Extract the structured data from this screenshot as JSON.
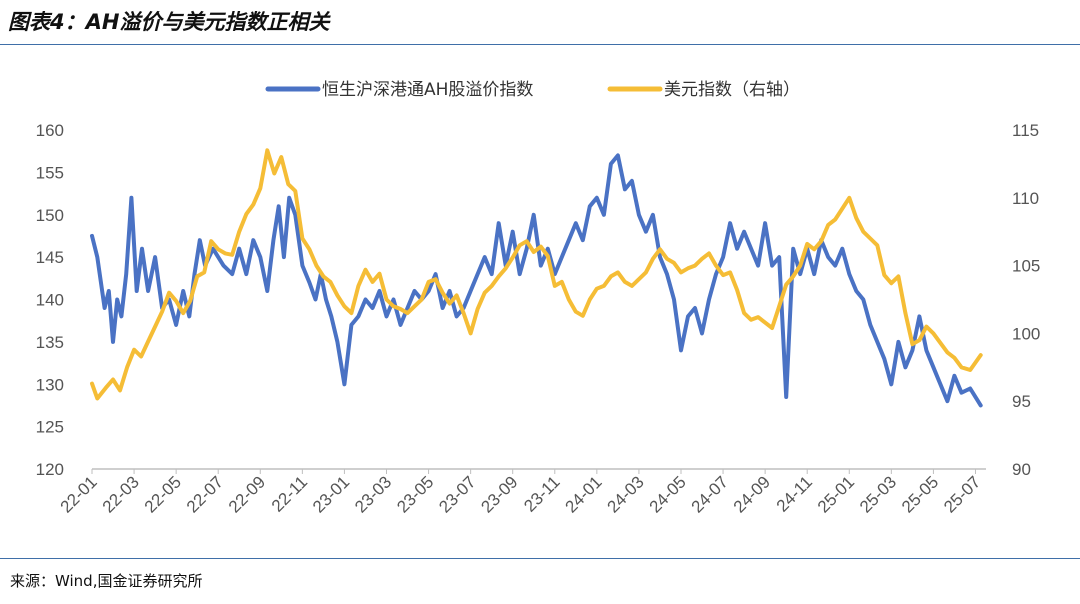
{
  "header": {
    "title": "图表4：AH溢价与美元指数正相关"
  },
  "footer": {
    "source": "来源：Wind,国金证券研究所"
  },
  "colors": {
    "series_ah": "#4a72c4",
    "series_dxy": "#f5bd36",
    "rule": "#3f6fa8",
    "axis": "#bfbfbf"
  },
  "chart_data": {
    "type": "line",
    "title": "",
    "legend_position": "top",
    "grid": false,
    "x_ticks": [
      "22-01",
      "22-03",
      "22-05",
      "22-07",
      "22-09",
      "22-11",
      "23-01",
      "23-03",
      "23-05",
      "23-07",
      "23-09",
      "23-11",
      "24-01",
      "24-03",
      "24-05",
      "24-07",
      "24-09",
      "24-11",
      "25-01",
      "25-03",
      "25-05",
      "25-07"
    ],
    "y_left": {
      "ticks": [
        120,
        125,
        130,
        135,
        140,
        145,
        150,
        155,
        160
      ],
      "range": [
        120,
        160
      ]
    },
    "y_right": {
      "ticks": [
        90,
        95,
        100,
        105,
        110,
        115
      ],
      "range": [
        90,
        115
      ]
    },
    "series": [
      {
        "name": "恒生沪深港通AH股溢价指数",
        "axis": "left",
        "points": [
          [
            "22-01",
            147.5
          ],
          [
            "22-01",
            145
          ],
          [
            "22-02",
            139
          ],
          [
            "22-02",
            141
          ],
          [
            "22-02",
            135
          ],
          [
            "22-02",
            140
          ],
          [
            "22-02",
            138
          ],
          [
            "22-03",
            143
          ],
          [
            "22-03",
            152
          ],
          [
            "22-03",
            141
          ],
          [
            "22-03",
            146
          ],
          [
            "22-04",
            141
          ],
          [
            "22-04",
            145
          ],
          [
            "22-04",
            139
          ],
          [
            "22-05",
            140
          ],
          [
            "22-05",
            137
          ],
          [
            "22-05",
            141
          ],
          [
            "22-06",
            138
          ],
          [
            "22-06",
            143
          ],
          [
            "22-06",
            147
          ],
          [
            "22-06",
            144
          ],
          [
            "22-07",
            146
          ],
          [
            "22-07",
            144
          ],
          [
            "22-08",
            143
          ],
          [
            "22-08",
            146
          ],
          [
            "22-08",
            143
          ],
          [
            "22-09",
            147
          ],
          [
            "22-09",
            145
          ],
          [
            "22-09",
            141
          ],
          [
            "22-10",
            147
          ],
          [
            "22-10",
            151
          ],
          [
            "22-10",
            145
          ],
          [
            "22-10",
            152
          ],
          [
            "22-11",
            150
          ],
          [
            "22-11",
            144
          ],
          [
            "22-11",
            142
          ],
          [
            "22-12",
            140
          ],
          [
            "22-12",
            143
          ],
          [
            "22-12",
            140
          ],
          [
            "22-12",
            138
          ],
          [
            "23-01",
            135
          ],
          [
            "23-01",
            130
          ],
          [
            "23-01",
            137
          ],
          [
            "23-02",
            138
          ],
          [
            "23-02",
            140
          ],
          [
            "23-02",
            139
          ],
          [
            "23-03",
            141
          ],
          [
            "23-03",
            138
          ],
          [
            "23-03",
            140
          ],
          [
            "23-04",
            137
          ],
          [
            "23-04",
            139
          ],
          [
            "23-04",
            141
          ],
          [
            "23-05",
            140
          ],
          [
            "23-05",
            141
          ],
          [
            "23-05",
            143
          ],
          [
            "23-06",
            139
          ],
          [
            "23-06",
            141
          ],
          [
            "23-06",
            138
          ],
          [
            "23-07",
            139
          ],
          [
            "23-07",
            141
          ],
          [
            "23-07",
            143
          ],
          [
            "23-08",
            145
          ],
          [
            "23-08",
            143
          ],
          [
            "23-08",
            149
          ],
          [
            "23-09",
            144
          ],
          [
            "23-09",
            148
          ],
          [
            "23-09",
            143
          ],
          [
            "23-10",
            146
          ],
          [
            "23-10",
            150
          ],
          [
            "23-10",
            144
          ],
          [
            "23-11",
            146
          ],
          [
            "23-11",
            143
          ],
          [
            "23-11",
            145
          ],
          [
            "23-12",
            147
          ],
          [
            "23-12",
            149
          ],
          [
            "23-12",
            147
          ],
          [
            "24-01",
            151
          ],
          [
            "24-01",
            152
          ],
          [
            "24-01",
            150
          ],
          [
            "24-02",
            156
          ],
          [
            "24-02",
            157
          ],
          [
            "24-02",
            153
          ],
          [
            "24-03",
            154
          ],
          [
            "24-03",
            150
          ],
          [
            "24-03",
            148
          ],
          [
            "24-04",
            150
          ],
          [
            "24-04",
            145
          ],
          [
            "24-04",
            143
          ],
          [
            "24-05",
            140
          ],
          [
            "24-05",
            134
          ],
          [
            "24-05",
            138
          ],
          [
            "24-06",
            139
          ],
          [
            "24-06",
            136
          ],
          [
            "24-06",
            140
          ],
          [
            "24-07",
            143
          ],
          [
            "24-07",
            145
          ],
          [
            "24-07",
            149
          ],
          [
            "24-08",
            146
          ],
          [
            "24-08",
            148
          ],
          [
            "24-08",
            146
          ],
          [
            "24-09",
            144
          ],
          [
            "24-09",
            149
          ],
          [
            "24-09",
            144
          ],
          [
            "24-10",
            145
          ],
          [
            "24-10",
            128.5
          ],
          [
            "24-10",
            146
          ],
          [
            "24-11",
            143
          ],
          [
            "24-11",
            146
          ],
          [
            "24-11",
            143
          ],
          [
            "24-12",
            147
          ],
          [
            "24-12",
            145
          ],
          [
            "24-12",
            144
          ],
          [
            "25-01",
            146
          ],
          [
            "25-01",
            143
          ],
          [
            "25-01",
            141
          ],
          [
            "25-02",
            140
          ],
          [
            "25-02",
            137
          ],
          [
            "25-02",
            135
          ],
          [
            "25-03",
            133
          ],
          [
            "25-03",
            130
          ],
          [
            "25-03",
            135
          ],
          [
            "25-04",
            132
          ],
          [
            "25-04",
            134
          ],
          [
            "25-04",
            138
          ],
          [
            "25-05",
            134
          ],
          [
            "25-05",
            132
          ],
          [
            "25-05",
            130
          ],
          [
            "25-06",
            128
          ],
          [
            "25-06",
            131
          ],
          [
            "25-06",
            129
          ],
          [
            "25-07",
            129.5
          ],
          [
            "25-07",
            127.5
          ]
        ]
      },
      {
        "name": "美元指数（右轴）",
        "axis": "right",
        "points": [
          [
            "22-01",
            96.3
          ],
          [
            "22-01",
            95.2
          ],
          [
            "22-02",
            96
          ],
          [
            "22-02",
            96.6
          ],
          [
            "22-02",
            95.8
          ],
          [
            "22-03",
            97.5
          ],
          [
            "22-03",
            98.8
          ],
          [
            "22-03",
            98.3
          ],
          [
            "22-04",
            99.4
          ],
          [
            "22-04",
            100.5
          ],
          [
            "22-04",
            101.6
          ],
          [
            "22-05",
            103
          ],
          [
            "22-05",
            102.4
          ],
          [
            "22-05",
            101.5
          ],
          [
            "22-06",
            102.4
          ],
          [
            "22-06",
            104.2
          ],
          [
            "22-06",
            104.5
          ],
          [
            "22-07",
            106.8
          ],
          [
            "22-07",
            106.2
          ],
          [
            "22-07",
            105.9
          ],
          [
            "22-08",
            105.8
          ],
          [
            "22-08",
            107.5
          ],
          [
            "22-08",
            108.8
          ],
          [
            "22-09",
            109.5
          ],
          [
            "22-09",
            110.7
          ],
          [
            "22-09",
            113.5
          ],
          [
            "22-10",
            111.8
          ],
          [
            "22-10",
            113
          ],
          [
            "22-10",
            111
          ],
          [
            "22-11",
            110.5
          ],
          [
            "22-11",
            107
          ],
          [
            "22-11",
            106.2
          ],
          [
            "22-12",
            105
          ],
          [
            "22-12",
            104.2
          ],
          [
            "22-12",
            103.8
          ],
          [
            "23-01",
            102.8
          ],
          [
            "23-01",
            102
          ],
          [
            "23-01",
            101.5
          ],
          [
            "23-02",
            103.5
          ],
          [
            "23-02",
            104.7
          ],
          [
            "23-02",
            103.8
          ],
          [
            "23-03",
            104.4
          ],
          [
            "23-03",
            102.5
          ],
          [
            "23-03",
            102
          ],
          [
            "23-04",
            101.8
          ],
          [
            "23-04",
            101.5
          ],
          [
            "23-04",
            102
          ],
          [
            "23-05",
            102.5
          ],
          [
            "23-05",
            103.8
          ],
          [
            "23-05",
            104
          ],
          [
            "23-06",
            103
          ],
          [
            "23-06",
            102.2
          ],
          [
            "23-06",
            102.8
          ],
          [
            "23-07",
            101.5
          ],
          [
            "23-07",
            100
          ],
          [
            "23-07",
            101.8
          ],
          [
            "23-08",
            103
          ],
          [
            "23-08",
            103.5
          ],
          [
            "23-08",
            104.2
          ],
          [
            "23-09",
            104.8
          ],
          [
            "23-09",
            105.6
          ],
          [
            "23-09",
            106.5
          ],
          [
            "23-10",
            106.8
          ],
          [
            "23-10",
            106
          ],
          [
            "23-10",
            106.4
          ],
          [
            "23-11",
            105.7
          ],
          [
            "23-11",
            103.5
          ],
          [
            "23-11",
            103.8
          ],
          [
            "23-12",
            102.5
          ],
          [
            "23-12",
            101.6
          ],
          [
            "23-12",
            101.3
          ],
          [
            "24-01",
            102.5
          ],
          [
            "24-01",
            103.3
          ],
          [
            "24-01",
            103.5
          ],
          [
            "24-02",
            104.2
          ],
          [
            "24-02",
            104.5
          ],
          [
            "24-02",
            103.8
          ],
          [
            "24-03",
            103.5
          ],
          [
            "24-03",
            104
          ],
          [
            "24-03",
            104.5
          ],
          [
            "24-04",
            105.5
          ],
          [
            "24-04",
            106.2
          ],
          [
            "24-04",
            105.5
          ],
          [
            "24-05",
            105.2
          ],
          [
            "24-05",
            104.5
          ],
          [
            "24-05",
            104.8
          ],
          [
            "24-06",
            105
          ],
          [
            "24-06",
            105.5
          ],
          [
            "24-06",
            105.9
          ],
          [
            "24-07",
            105
          ],
          [
            "24-07",
            104.3
          ],
          [
            "24-07",
            104.5
          ],
          [
            "24-08",
            103.2
          ],
          [
            "24-08",
            101.5
          ],
          [
            "24-08",
            101
          ],
          [
            "24-09",
            101.2
          ],
          [
            "24-09",
            100.8
          ],
          [
            "24-09",
            100.4
          ],
          [
            "24-10",
            102
          ],
          [
            "24-10",
            103.6
          ],
          [
            "24-10",
            104.2
          ],
          [
            "24-11",
            105
          ],
          [
            "24-11",
            106.6
          ],
          [
            "24-11",
            106.2
          ],
          [
            "24-12",
            106.8
          ],
          [
            "24-12",
            108
          ],
          [
            "24-12",
            108.4
          ],
          [
            "25-01",
            109.2
          ],
          [
            "25-01",
            110
          ],
          [
            "25-01",
            108.5
          ],
          [
            "25-02",
            107.5
          ],
          [
            "25-02",
            107
          ],
          [
            "25-02",
            106.5
          ],
          [
            "25-03",
            104.3
          ],
          [
            "25-03",
            103.7
          ],
          [
            "25-03",
            104.2
          ],
          [
            "25-04",
            101.5
          ],
          [
            "25-04",
            99.2
          ],
          [
            "25-04",
            99.5
          ],
          [
            "25-05",
            100.5
          ],
          [
            "25-05",
            100
          ],
          [
            "25-05",
            99.3
          ],
          [
            "25-06",
            98.6
          ],
          [
            "25-06",
            98.2
          ],
          [
            "25-06",
            97.5
          ],
          [
            "25-07",
            97.3
          ],
          [
            "25-07",
            98.4
          ]
        ]
      }
    ]
  }
}
